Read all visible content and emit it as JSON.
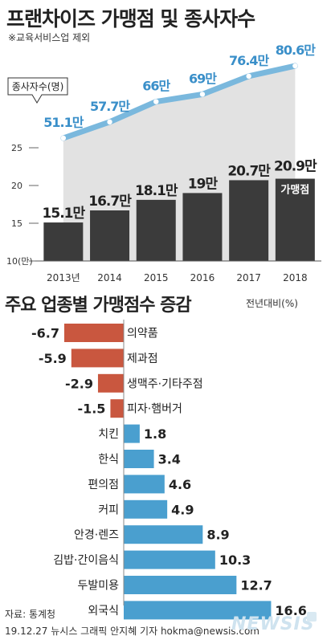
{
  "header": {
    "title": "프랜차이즈 가맹점 및 종사자수",
    "note": "※교육서비스업 제외"
  },
  "chart_data": [
    {
      "type": "bar",
      "categories": [
        "2013년",
        "2014",
        "2015",
        "2016",
        "2017",
        "2018"
      ],
      "y_ticks": [
        "10(만)",
        "15",
        "20",
        "25"
      ],
      "ylim": [
        10,
        28
      ],
      "series": [
        {
          "name": "가맹점",
          "values": [
            15.1,
            16.7,
            18.1,
            19,
            20.7,
            20.9
          ],
          "labels": [
            "15.1만",
            "16.7만",
            "18.1만",
            "19만",
            "20.7만",
            "20.9만"
          ]
        },
        {
          "name": "종사자수(명)",
          "type": "line",
          "values": [
            51.1,
            57.7,
            66,
            69,
            76.4,
            80.6
          ],
          "labels": [
            "51.1만",
            "57.7만",
            "66만",
            "69만",
            "76.4만",
            "80.6만"
          ]
        }
      ],
      "colors": {
        "bar": "#3b3b3b",
        "line": "#7ab8dd",
        "line_label": "#3a8fc9",
        "area": "#e2e2e2"
      }
    },
    {
      "type": "bar",
      "orientation": "horizontal",
      "title": "주요 업종별 가맹점수 증감",
      "unit": "전년대비(%)",
      "categories": [
        "의약품",
        "제과점",
        "생맥주·기타주점",
        "피자·햄버거",
        "치킨",
        "한식",
        "편의점",
        "커피",
        "안경·렌즈",
        "김밥·간이음식",
        "두발미용",
        "외국식"
      ],
      "values": [
        -6.7,
        -5.9,
        -2.9,
        -1.5,
        1.8,
        3.4,
        4.6,
        4.9,
        8.9,
        10.3,
        12.7,
        16.6
      ],
      "value_labels": [
        "-6.7",
        "-5.9",
        "-2.9",
        "-1.5",
        "1.8",
        "3.4",
        "4.6",
        "4.9",
        "8.9",
        "10.3",
        "12.7",
        "16.6"
      ],
      "colors": {
        "negative": "#c9573f",
        "positive": "#4a9fcf"
      }
    }
  ],
  "footer": {
    "source": "자료: 통계청",
    "credit": "19.12.27 뉴시스 그래픽 안지혜 기자 hokma@newsis.com",
    "logo": "NEWSIS"
  }
}
